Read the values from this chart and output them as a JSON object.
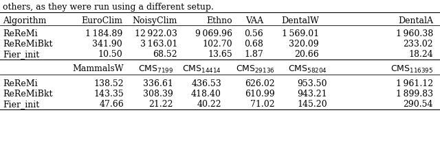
{
  "caption": "others, as they were run using a different setup.",
  "table1_cols": [
    "Algorithm",
    "EuroClim",
    "NoisyClim",
    "Ethno",
    "VAA",
    "DentalW",
    "DentalA"
  ],
  "table1_rows": [
    [
      "ReReMi",
      "1 184.89",
      "12 922.03",
      "9 069.96",
      "0.56",
      "1 569.01",
      "1 960.38"
    ],
    [
      "ReReMiBkt",
      "341.90",
      "3 163.01",
      "102.70",
      "0.68",
      "320.09",
      "233.02"
    ],
    [
      "Fier_init",
      "10.50",
      "68.52",
      "13.65",
      "1.87",
      "20.66",
      "18.24"
    ]
  ],
  "table2_rows": [
    [
      "ReReMi",
      "138.52",
      "336.61",
      "436.53",
      "626.02",
      "953.50",
      "1 961.12"
    ],
    [
      "ReReMiBkt",
      "143.35",
      "308.39",
      "418.40",
      "610.99",
      "943.21",
      "1 899.83"
    ],
    [
      "Fier_init",
      "47.66",
      "21.22",
      "40.22",
      "71.02",
      "145.20",
      "290.54"
    ]
  ],
  "t2_subs": [
    "7199",
    "14414",
    "29136",
    "58204",
    "116395"
  ],
  "font_size": 9.0,
  "text_color": "#000000",
  "bg_color": "#ffffff",
  "fig_w": 6.4,
  "fig_h": 2.31,
  "dpi": 100
}
